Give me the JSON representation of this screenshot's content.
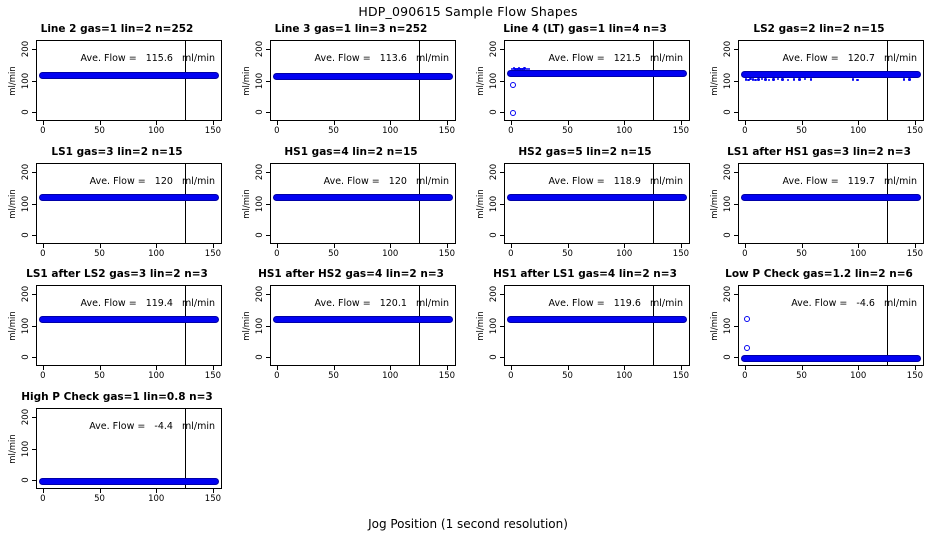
{
  "figure": {
    "title": "HDP_090615  Sample Flow Shapes",
    "xlabel": "Jog Position (1 second resolution)",
    "ylabel": "ml/min"
  },
  "colors": {
    "point_fill": "#0202f2",
    "point_edge": "#0000a8",
    "axis": "#000000",
    "background": "#ffffff"
  },
  "axes": {
    "x_ticks": [
      0,
      50,
      100,
      150
    ],
    "y_ticks": [
      0,
      100,
      200
    ],
    "xlim": [
      -6,
      158
    ],
    "ylim": [
      -29.6,
      229.6
    ],
    "marker_line_x": 125,
    "band_x_start": 0,
    "band_x_end": 152
  },
  "annotation": {
    "prefix": "Ave. Flow = ",
    "units": " ml/min",
    "gap": "  "
  },
  "chart_data": [
    {
      "type": "scatter",
      "title": "Line 2 gas=1 lin=2 n=252",
      "ave_flow": "115.6",
      "band_y": 115.6,
      "outliers": [],
      "extra_dots": []
    },
    {
      "type": "scatter",
      "title": "Line 3 gas=1 lin=3 n=252",
      "ave_flow": "113.6",
      "band_y": 113.6,
      "outliers": [],
      "extra_dots": []
    },
    {
      "type": "scatter",
      "title": "Line 4 (LT) gas=1 lin=4 n=3",
      "ave_flow": "121.5",
      "band_y": 121.5,
      "outliers": [
        [
          1.5,
          87
        ],
        [
          1.5,
          -4
        ]
      ],
      "extra_dots": [
        [
          1,
          138
        ],
        [
          2.5,
          139
        ],
        [
          4,
          137
        ],
        [
          5.5,
          138
        ],
        [
          7,
          139
        ],
        [
          8.5,
          137
        ],
        [
          10,
          138
        ],
        [
          12,
          139
        ],
        [
          14,
          138
        ],
        [
          16,
          137
        ]
      ]
    },
    {
      "type": "scatter",
      "title": "LS2 gas=2 lin=2 n=15",
      "ave_flow": "120.7",
      "band_y": 120.7,
      "outliers": [],
      "extra_dots": [
        [
          1,
          104
        ],
        [
          3,
          103
        ],
        [
          5,
          105
        ],
        [
          7,
          104
        ],
        [
          9,
          103
        ],
        [
          12,
          104
        ],
        [
          15,
          105
        ],
        [
          18,
          104
        ],
        [
          21,
          103
        ],
        [
          25,
          104
        ],
        [
          29,
          105
        ],
        [
          33,
          104
        ],
        [
          38,
          103
        ],
        [
          43,
          104
        ],
        [
          48,
          104
        ],
        [
          53,
          105
        ],
        [
          58,
          104
        ],
        [
          95,
          104
        ],
        [
          99,
          103
        ],
        [
          140,
          104
        ],
        [
          145,
          104
        ]
      ]
    },
    {
      "type": "scatter",
      "title": "LS1 gas=3 lin=2 n=15",
      "ave_flow": "120",
      "band_y": 120,
      "outliers": [],
      "extra_dots": []
    },
    {
      "type": "scatter",
      "title": "HS1 gas=4 lin=2 n=15",
      "ave_flow": "120",
      "band_y": 120,
      "outliers": [],
      "extra_dots": []
    },
    {
      "type": "scatter",
      "title": "HS2 gas=5 lin=2 n=15",
      "ave_flow": "118.9",
      "band_y": 118.9,
      "outliers": [],
      "extra_dots": []
    },
    {
      "type": "scatter",
      "title": "LS1 after HS1 gas=3 lin=2 n=3",
      "ave_flow": "119.7",
      "band_y": 119.7,
      "outliers": [],
      "extra_dots": []
    },
    {
      "type": "scatter",
      "title": "LS1 after LS2 gas=3 lin=2 n=3",
      "ave_flow": "119.4",
      "band_y": 119.4,
      "outliers": [],
      "extra_dots": []
    },
    {
      "type": "scatter",
      "title": "HS1 after HS2 gas=4 lin=2 n=3",
      "ave_flow": "120.1",
      "band_y": 120.1,
      "outliers": [],
      "extra_dots": []
    },
    {
      "type": "scatter",
      "title": "HS1 after LS1 gas=4 lin=2 n=3",
      "ave_flow": "119.6",
      "band_y": 119.6,
      "outliers": [],
      "extra_dots": []
    },
    {
      "type": "scatter",
      "title": "Low P Check gas=1.2 lin=2 n=6",
      "ave_flow": "-4.6",
      "band_y": -4.6,
      "outliers": [
        [
          1.5,
          122
        ],
        [
          2,
          28
        ]
      ],
      "extra_dots": []
    },
    {
      "type": "scatter",
      "title": "High P Check gas=1 lin=0.8 n=3",
      "ave_flow": "-4.4",
      "band_y": -4.4,
      "outliers": [],
      "extra_dots": []
    }
  ]
}
